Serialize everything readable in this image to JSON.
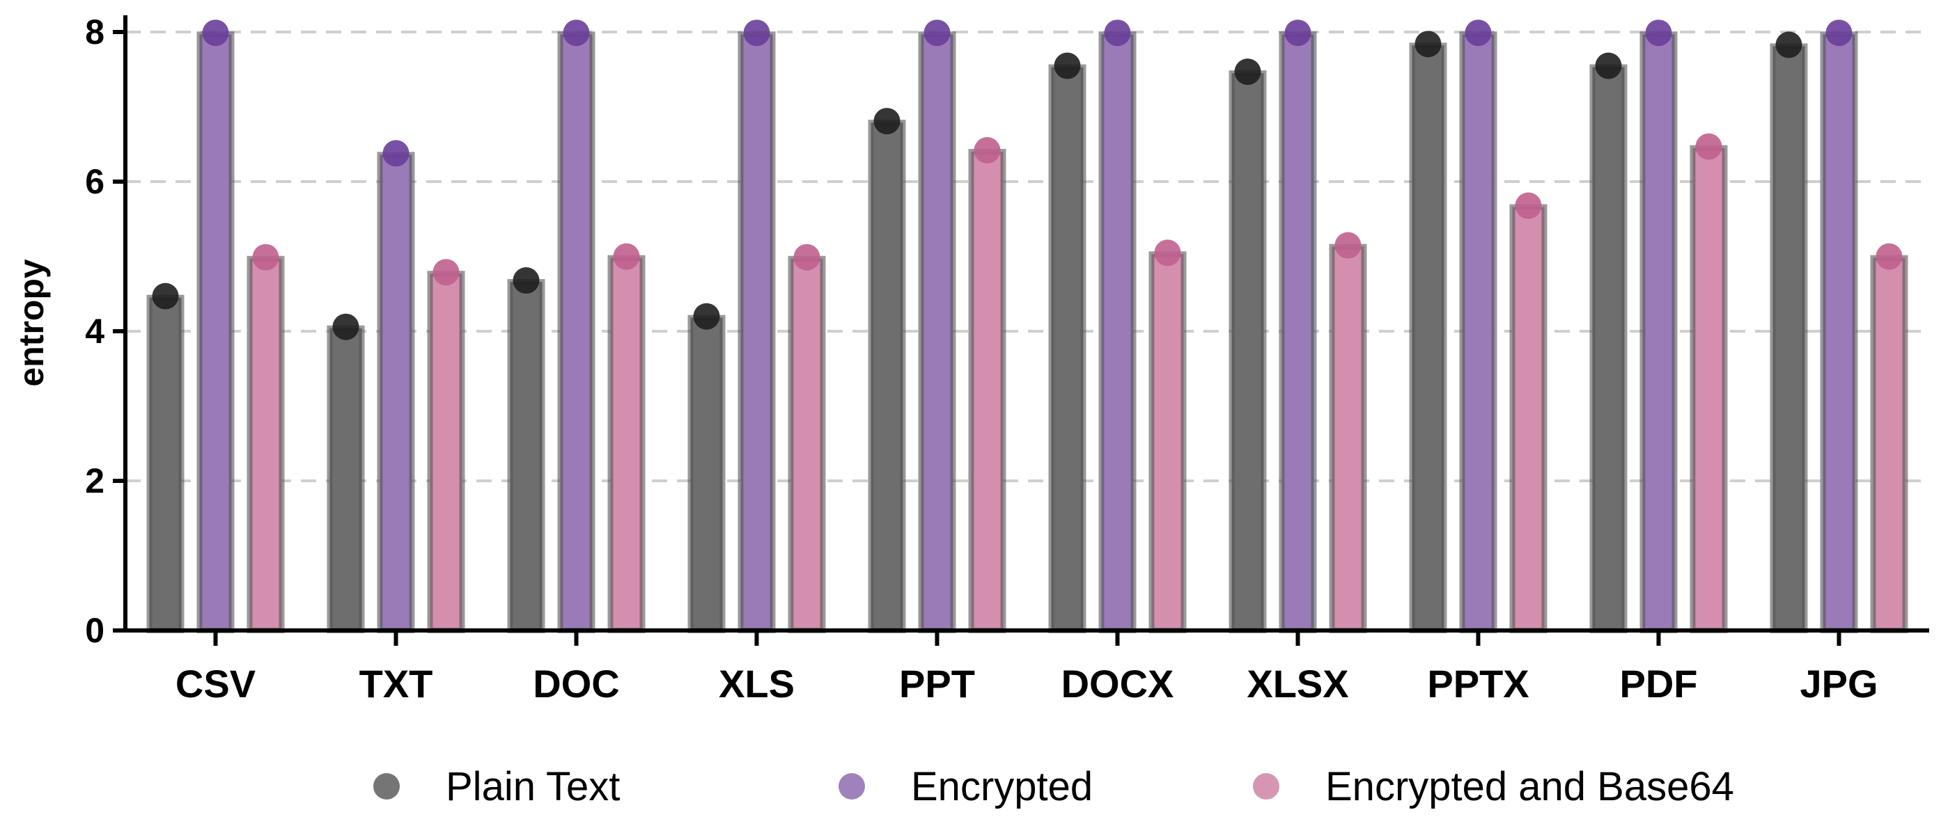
{
  "chart_data": {
    "type": "bar",
    "title": "",
    "xlabel": "",
    "ylabel": "entropy",
    "ylim": [
      0,
      8
    ],
    "yticks": [
      "0",
      "2",
      "4",
      "6",
      "8"
    ],
    "grid": "horizontal dashed",
    "legend_position": "bottom",
    "categories": [
      "CSV",
      "TXT",
      "DOC",
      "XLS",
      "PPT",
      "DOCX",
      "XLSX",
      "PPTX",
      "PDF",
      "JPG"
    ],
    "series": [
      {
        "name": "Plain Text",
        "color": "#6e6e6e",
        "dot_color": "#1f1f1f",
        "values": [
          4.45,
          4.04,
          4.66,
          4.18,
          6.79,
          7.53,
          7.45,
          7.82,
          7.53,
          7.81
        ]
      },
      {
        "name": "Encrypted",
        "color": "#9a7bb8",
        "dot_color": "#6a3e9a",
        "values": [
          7.97,
          6.36,
          7.97,
          7.97,
          7.97,
          7.97,
          7.97,
          7.97,
          7.97,
          7.97
        ]
      },
      {
        "name": "Encrypted and Base64",
        "color": "#d48fae",
        "dot_color": "#c0608e",
        "values": [
          4.97,
          4.77,
          4.98,
          4.97,
          6.4,
          5.03,
          5.13,
          5.66,
          6.45,
          4.98
        ]
      }
    ]
  }
}
